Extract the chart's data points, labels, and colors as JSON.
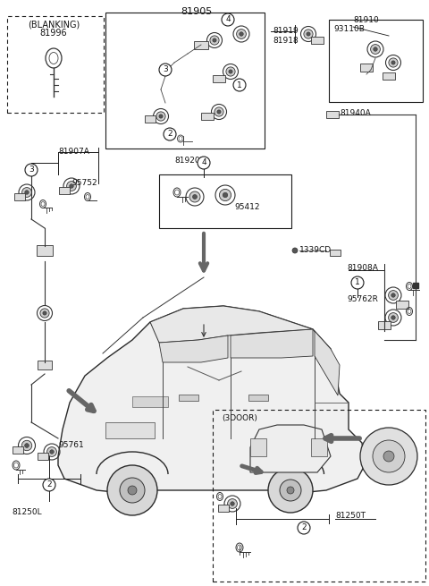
{
  "bg_color": "#ffffff",
  "line_color": "#1a1a1a",
  "text_color": "#111111",
  "gray_color": "#666666",
  "fig_width": 4.8,
  "fig_height": 6.55,
  "dpi": 100,
  "labels": {
    "main_title": "81905",
    "blanking_label": "(BLANKING)",
    "blanking_num": "81996",
    "part_81907A": "81907A",
    "part_95752": "95752",
    "part_81920B": "81920B",
    "part_95412": "95412",
    "part_81919": "81919",
    "part_81918": "81918",
    "part_81910": "81910",
    "part_93110B": "93110B",
    "part_81940A": "81940A",
    "part_1339CD": "1339CD",
    "part_81908A": "81908A",
    "part_95762R": "95762R",
    "part_95761": "95761",
    "part_81250L": "81250L",
    "part_3door": "(3DOOR)",
    "part_81250T": "81250T"
  }
}
